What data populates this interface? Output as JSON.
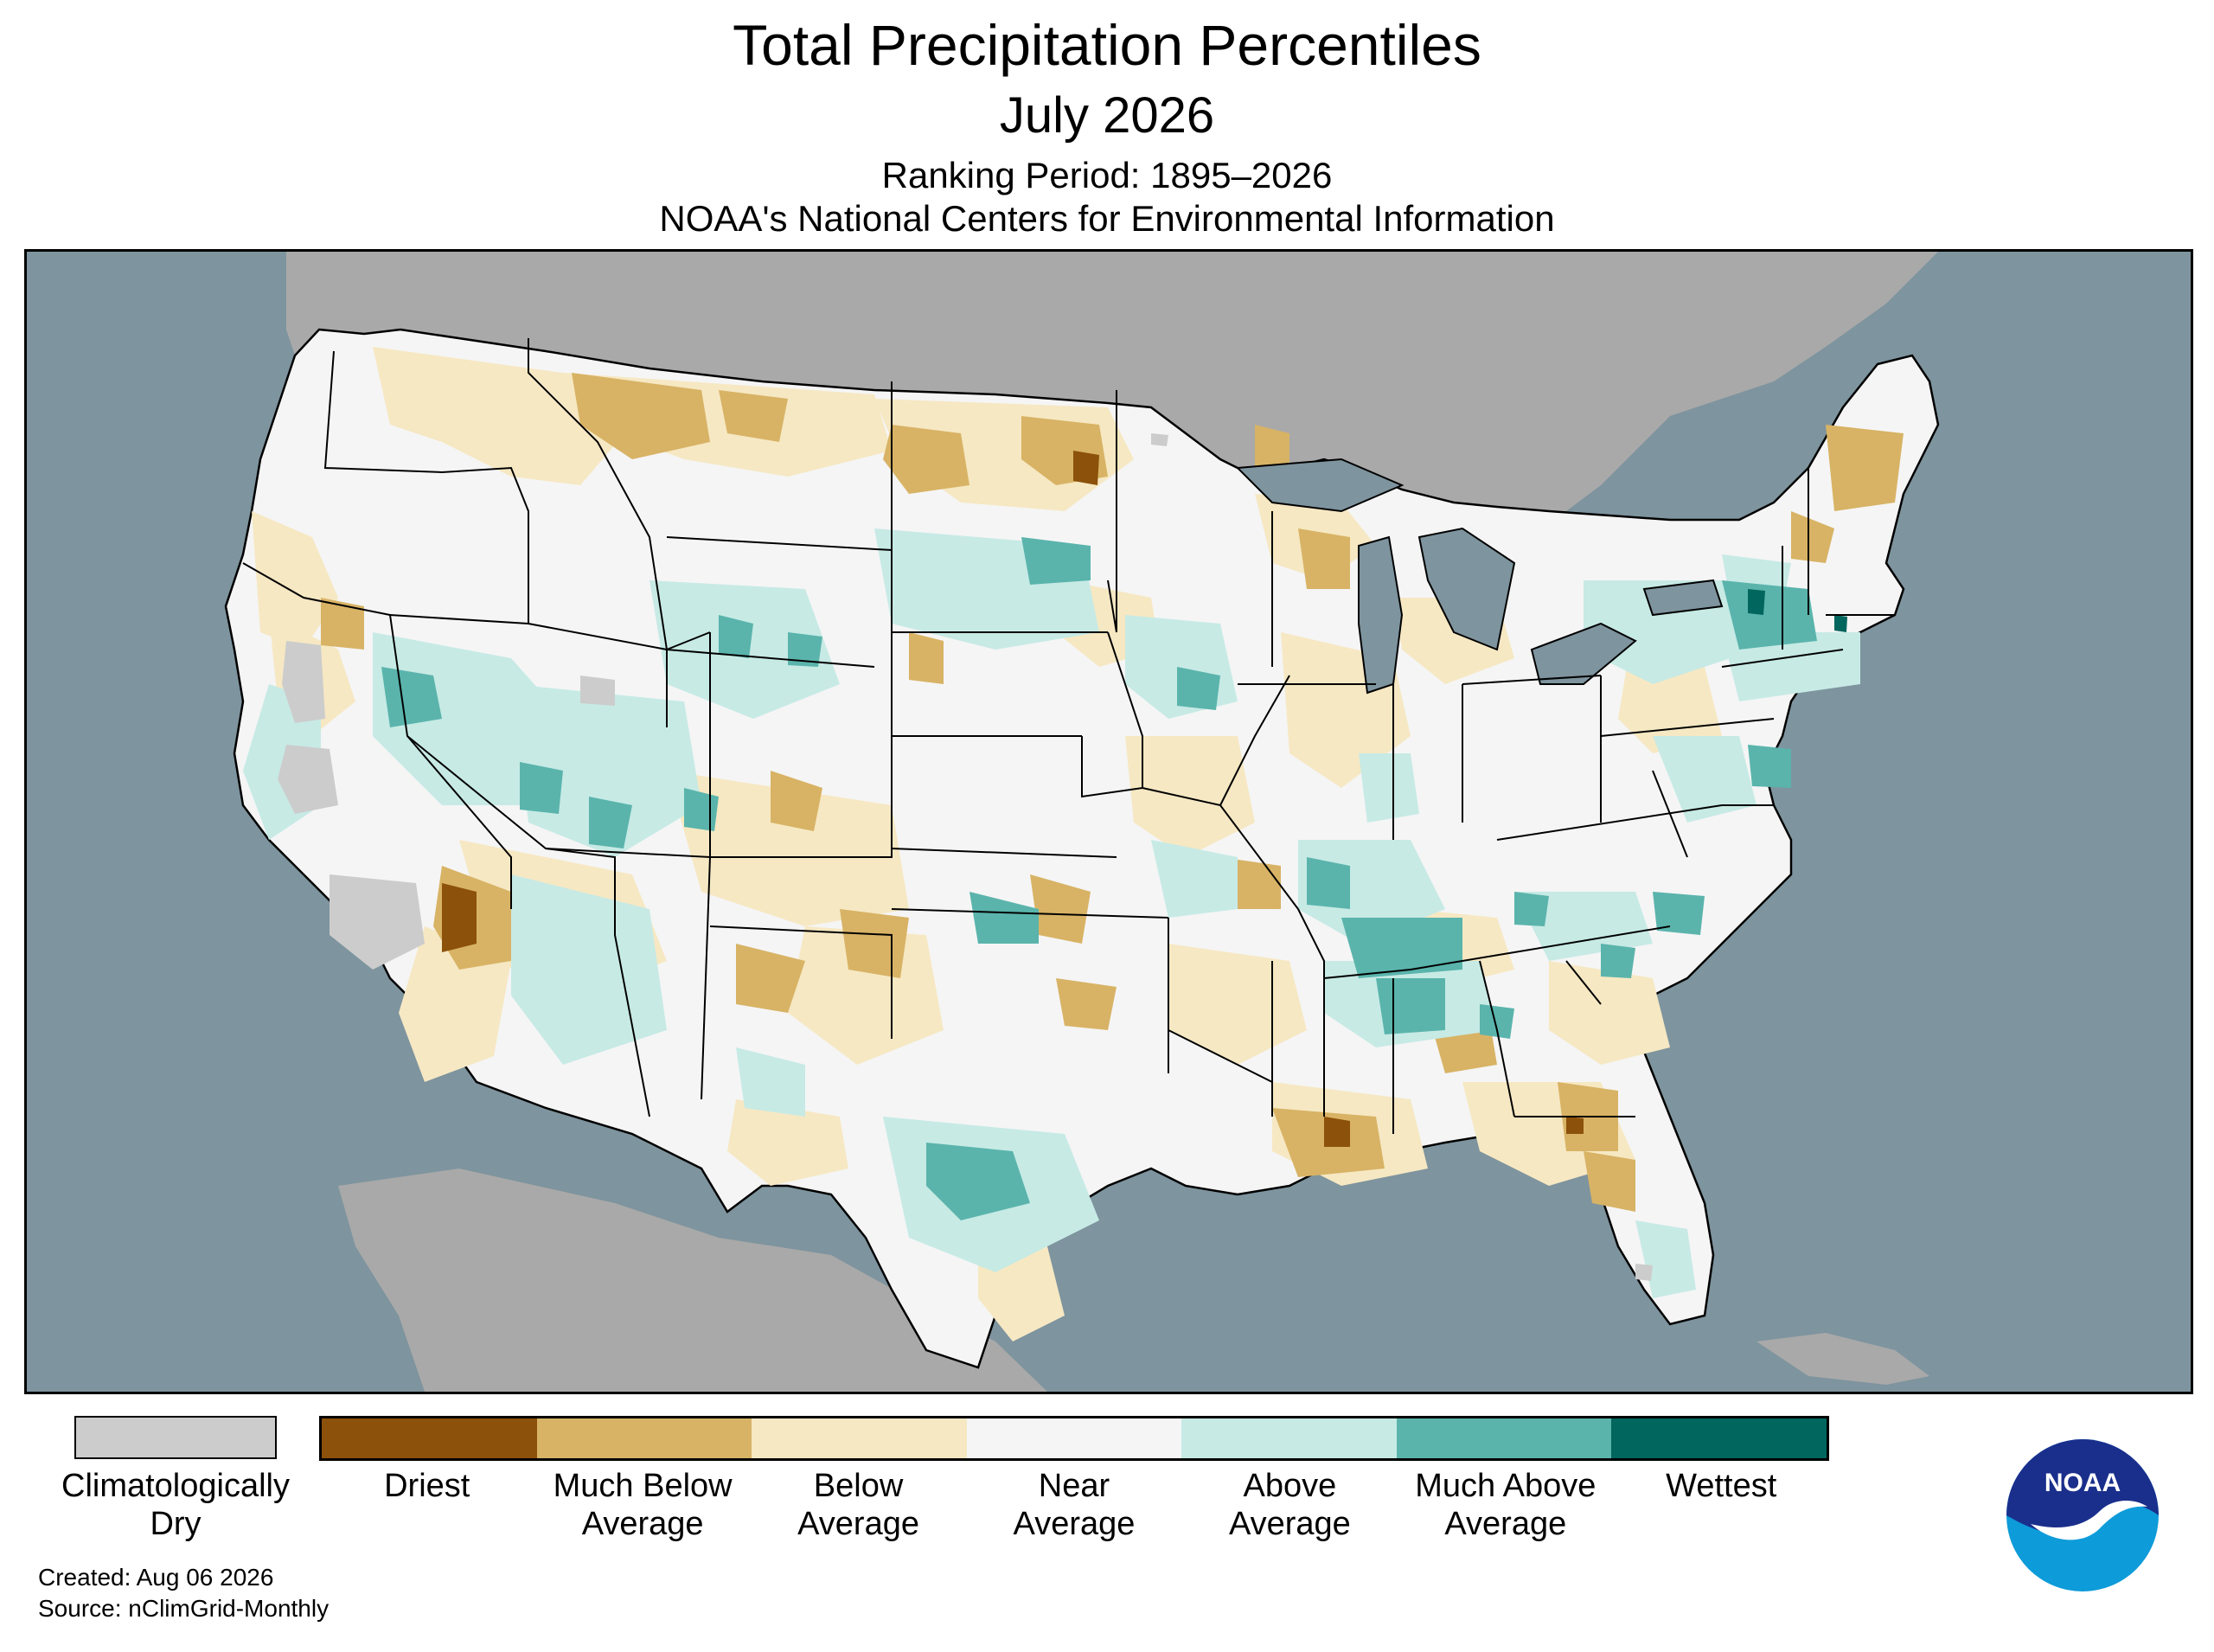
{
  "header": {
    "title": "Total Precipitation Percentiles",
    "subtitle": "July 2026",
    "ranking_period": "Ranking Period: 1895–2026",
    "agency": "NOAA's National Centers for Environmental Information"
  },
  "map": {
    "region": "Contiguous United States",
    "colors": {
      "ocean": "#7e949e",
      "land_outside": "#a9a9a9",
      "borders": "#000000"
    }
  },
  "legend": {
    "dry": {
      "label": "Climatologically Dry",
      "line1": "Climatologically",
      "line2": "Dry",
      "color": "#cccccc"
    },
    "categories": [
      {
        "line1": "Driest",
        "line2": "",
        "color": "#8c510a"
      },
      {
        "line1": "Much Below",
        "line2": "Average",
        "color": "#d8b365"
      },
      {
        "line1": "Below",
        "line2": "Average",
        "color": "#f6e8c3"
      },
      {
        "line1": "Near",
        "line2": "Average",
        "color": "#f5f5f5"
      },
      {
        "line1": "Above",
        "line2": "Average",
        "color": "#c7eae5"
      },
      {
        "line1": "Much Above",
        "line2": "Average",
        "color": "#5ab4ac"
      },
      {
        "line1": "Wettest",
        "line2": "",
        "color": "#01665e"
      }
    ]
  },
  "footer": {
    "created": "Created: Aug 06 2026",
    "source": "Source: nClimGrid-Monthly"
  },
  "logo": {
    "text": "NOAA",
    "icon": "noaa-logo-icon"
  }
}
